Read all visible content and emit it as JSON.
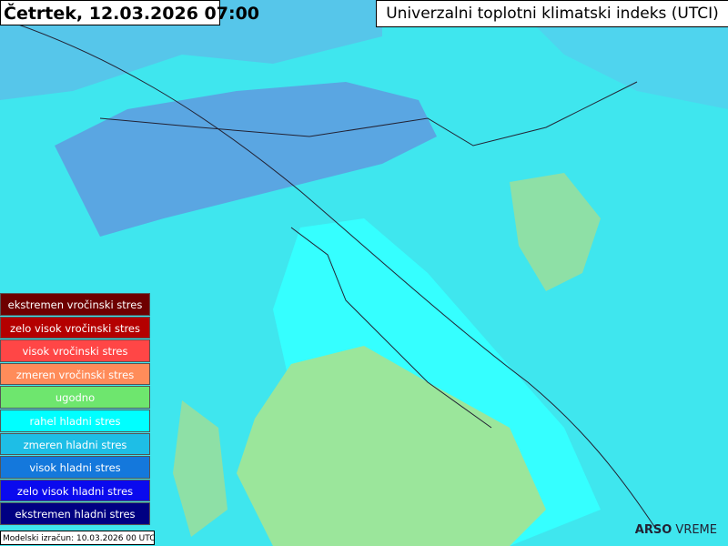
{
  "header": {
    "title": "Četrtek, 12.03.2026 07:00",
    "subtitle": "Univerzalni toplotni klimatski indeks (UTCI)"
  },
  "legend": {
    "items": [
      {
        "label": "ekstremen vročinski stres",
        "color": "#6e0000"
      },
      {
        "label": "zelo visok vročinski stres",
        "color": "#b40000"
      },
      {
        "label": "visok vročinski stres",
        "color": "#ff4646"
      },
      {
        "label": "zmeren vročinski stres",
        "color": "#ff8c5a"
      },
      {
        "label": "ugodno",
        "color": "#6ee66e"
      },
      {
        "label": "rahel hladni stres",
        "color": "#00ffff"
      },
      {
        "label": "zmeren hladni stres",
        "color": "#1ebee6"
      },
      {
        "label": "visok hladni stres",
        "color": "#1478dc"
      },
      {
        "label": "zelo visok hladni stres",
        "color": "#0a0aee"
      },
      {
        "label": "ekstremen hladni stres",
        "color": "#000082"
      }
    ]
  },
  "footer": {
    "note": "Modelski izračun: 10.03.2026 00 UTC"
  },
  "logo": {
    "brand": "ARSO",
    "product": "VREME"
  }
}
